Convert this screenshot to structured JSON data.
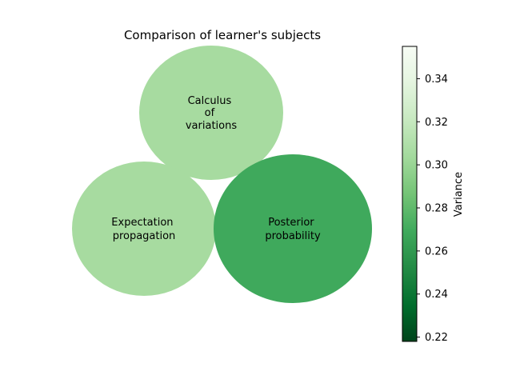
{
  "chart_data": {
    "type": "bubble",
    "title": "Comparison of learner's subjects",
    "bubbles": [
      {
        "label": [
          "Calculus",
          "of",
          "variations"
        ],
        "size": 0.31,
        "variance": 0.31
      },
      {
        "label": [
          "Expectation",
          "propagation"
        ],
        "size": 0.31,
        "variance": 0.31
      },
      {
        "label": [
          "Posterior",
          "probability"
        ],
        "size": 0.33,
        "variance": 0.272
      }
    ],
    "colorbar": {
      "label": "Variance",
      "colormap": "Greens_r",
      "vmin": 0.218,
      "vmax": 0.355,
      "ticks": [
        "0.22",
        "0.24",
        "0.26",
        "0.28",
        "0.30",
        "0.32",
        "0.34"
      ]
    },
    "colors": {
      "light_bubble": "#a7dba0",
      "dark_bubble": "#3fa95c",
      "cmap_dark": "#00441b",
      "cmap_light": "#f7fcf5"
    }
  }
}
